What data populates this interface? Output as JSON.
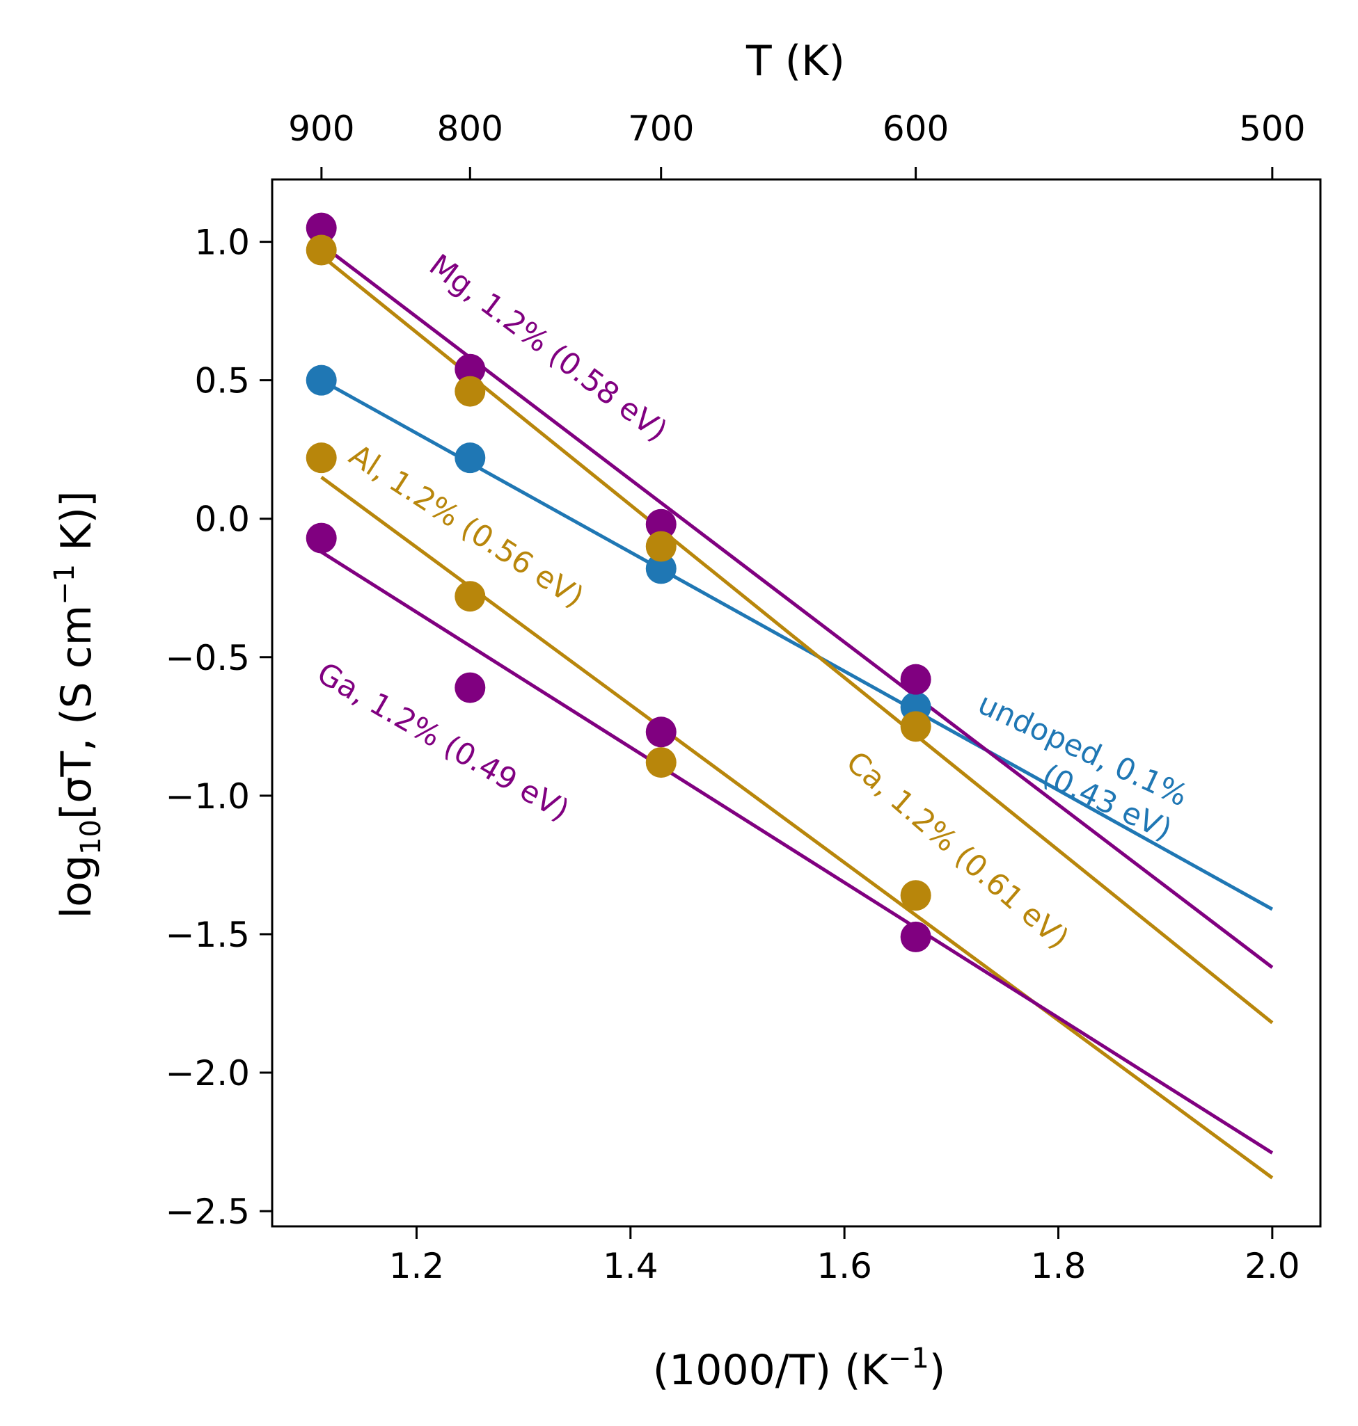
{
  "chart_data": {
    "type": "scatter",
    "title": "",
    "xlabel": "(1000/T) (K",
    "xlabel_sup": "−1",
    "xlabel_end": ")",
    "ylabel_pre": "log",
    "ylabel_sub": "10",
    "ylabel_mid": "[σT, (S cm",
    "ylabel_sup": "−1",
    "ylabel_end": " K)]",
    "top_xlabel": "T (K)",
    "xlim": [
      1.065,
      2.045
    ],
    "ylim": [
      -2.555,
      1.225
    ],
    "xticks": [
      1.2,
      1.4,
      1.6,
      1.8,
      2.0
    ],
    "xtick_labels": [
      "1.2",
      "1.4",
      "1.6",
      "1.8",
      "2.0"
    ],
    "yticks": [
      1.0,
      0.5,
      0.0,
      -0.5,
      -1.0,
      -1.5,
      -2.0,
      -2.5
    ],
    "ytick_labels": [
      "1.0",
      "0.5",
      "0.0",
      "−0.5",
      "−1.0",
      "−1.5",
      "−2.0",
      "−2.5"
    ],
    "top_ticks": [
      900,
      800,
      700,
      600,
      500
    ],
    "top_tick_labels": [
      "900",
      "800",
      "700",
      "600",
      "500"
    ],
    "grid": false,
    "series": [
      {
        "name": "undoped, 0.1% (0.43 eV)",
        "color": "#1f77b4",
        "x": [
          1.111,
          1.25,
          1.4286,
          1.6667
        ],
        "y": [
          0.5,
          0.22,
          -0.18,
          -0.68
        ],
        "fit": [
          [
            1.111,
            0.5
          ],
          [
            2.0,
            -1.41
          ]
        ]
      },
      {
        "name": "Mg, 1.2% (0.58 eV)",
        "color": "#800080",
        "x": [
          1.111,
          1.25,
          1.4286,
          1.6667
        ],
        "y": [
          1.05,
          0.54,
          -0.02,
          -0.58
        ],
        "fit": [
          [
            1.111,
            0.99
          ],
          [
            2.0,
            -1.62
          ]
        ]
      },
      {
        "name": "Ca, 1.2% (0.61 eV)",
        "color": "#b8860b",
        "x": [
          1.111,
          1.25,
          1.4286,
          1.6667
        ],
        "y": [
          0.97,
          0.46,
          -0.1,
          -0.75
        ],
        "fit": [
          [
            1.111,
            0.95
          ],
          [
            2.0,
            -1.82
          ]
        ]
      },
      {
        "name": "Al, 1.2% (0.56 eV)",
        "color": "#b8860b",
        "x": [
          1.111,
          1.25,
          1.4286,
          1.6667
        ],
        "y": [
          0.22,
          -0.28,
          -0.88,
          -1.36
        ],
        "fit": [
          [
            1.111,
            0.15
          ],
          [
            2.0,
            -2.38
          ]
        ]
      },
      {
        "name": "Ga, 1.2% (0.49 eV)",
        "color": "#800080",
        "x": [
          1.111,
          1.25,
          1.4286,
          1.6667
        ],
        "y": [
          -0.07,
          -0.61,
          -0.77,
          -1.51
        ],
        "fit": [
          [
            1.111,
            -0.12
          ],
          [
            2.0,
            -2.29
          ]
        ]
      }
    ],
    "annotations": [
      {
        "id": "mg",
        "lines": [
          "Mg, 1.2% (0.58 eV)"
        ],
        "color": "#800080",
        "x": 1.21,
        "y": 0.9,
        "angle": 37
      },
      {
        "id": "al",
        "lines": [
          "Al, 1.2% (0.56 eV)"
        ],
        "color": "#b8860b",
        "x": 1.135,
        "y": 0.21,
        "angle": 33
      },
      {
        "id": "ga",
        "lines": [
          "Ga, 1.2% (0.49 eV)"
        ],
        "color": "#800080",
        "x": 1.105,
        "y": -0.58,
        "angle": 30
      },
      {
        "id": "ca",
        "lines": [
          "Ca, 1.2% (0.61 eV)"
        ],
        "color": "#b8860b",
        "x": 1.6,
        "y": -0.89,
        "angle": 41
      },
      {
        "id": "undoped",
        "lines": [
          "undoped, 0.1%",
          "(0.43 eV)"
        ],
        "color": "#1f77b4",
        "x": 1.915,
        "y": -1.04,
        "angle": 25
      }
    ]
  }
}
